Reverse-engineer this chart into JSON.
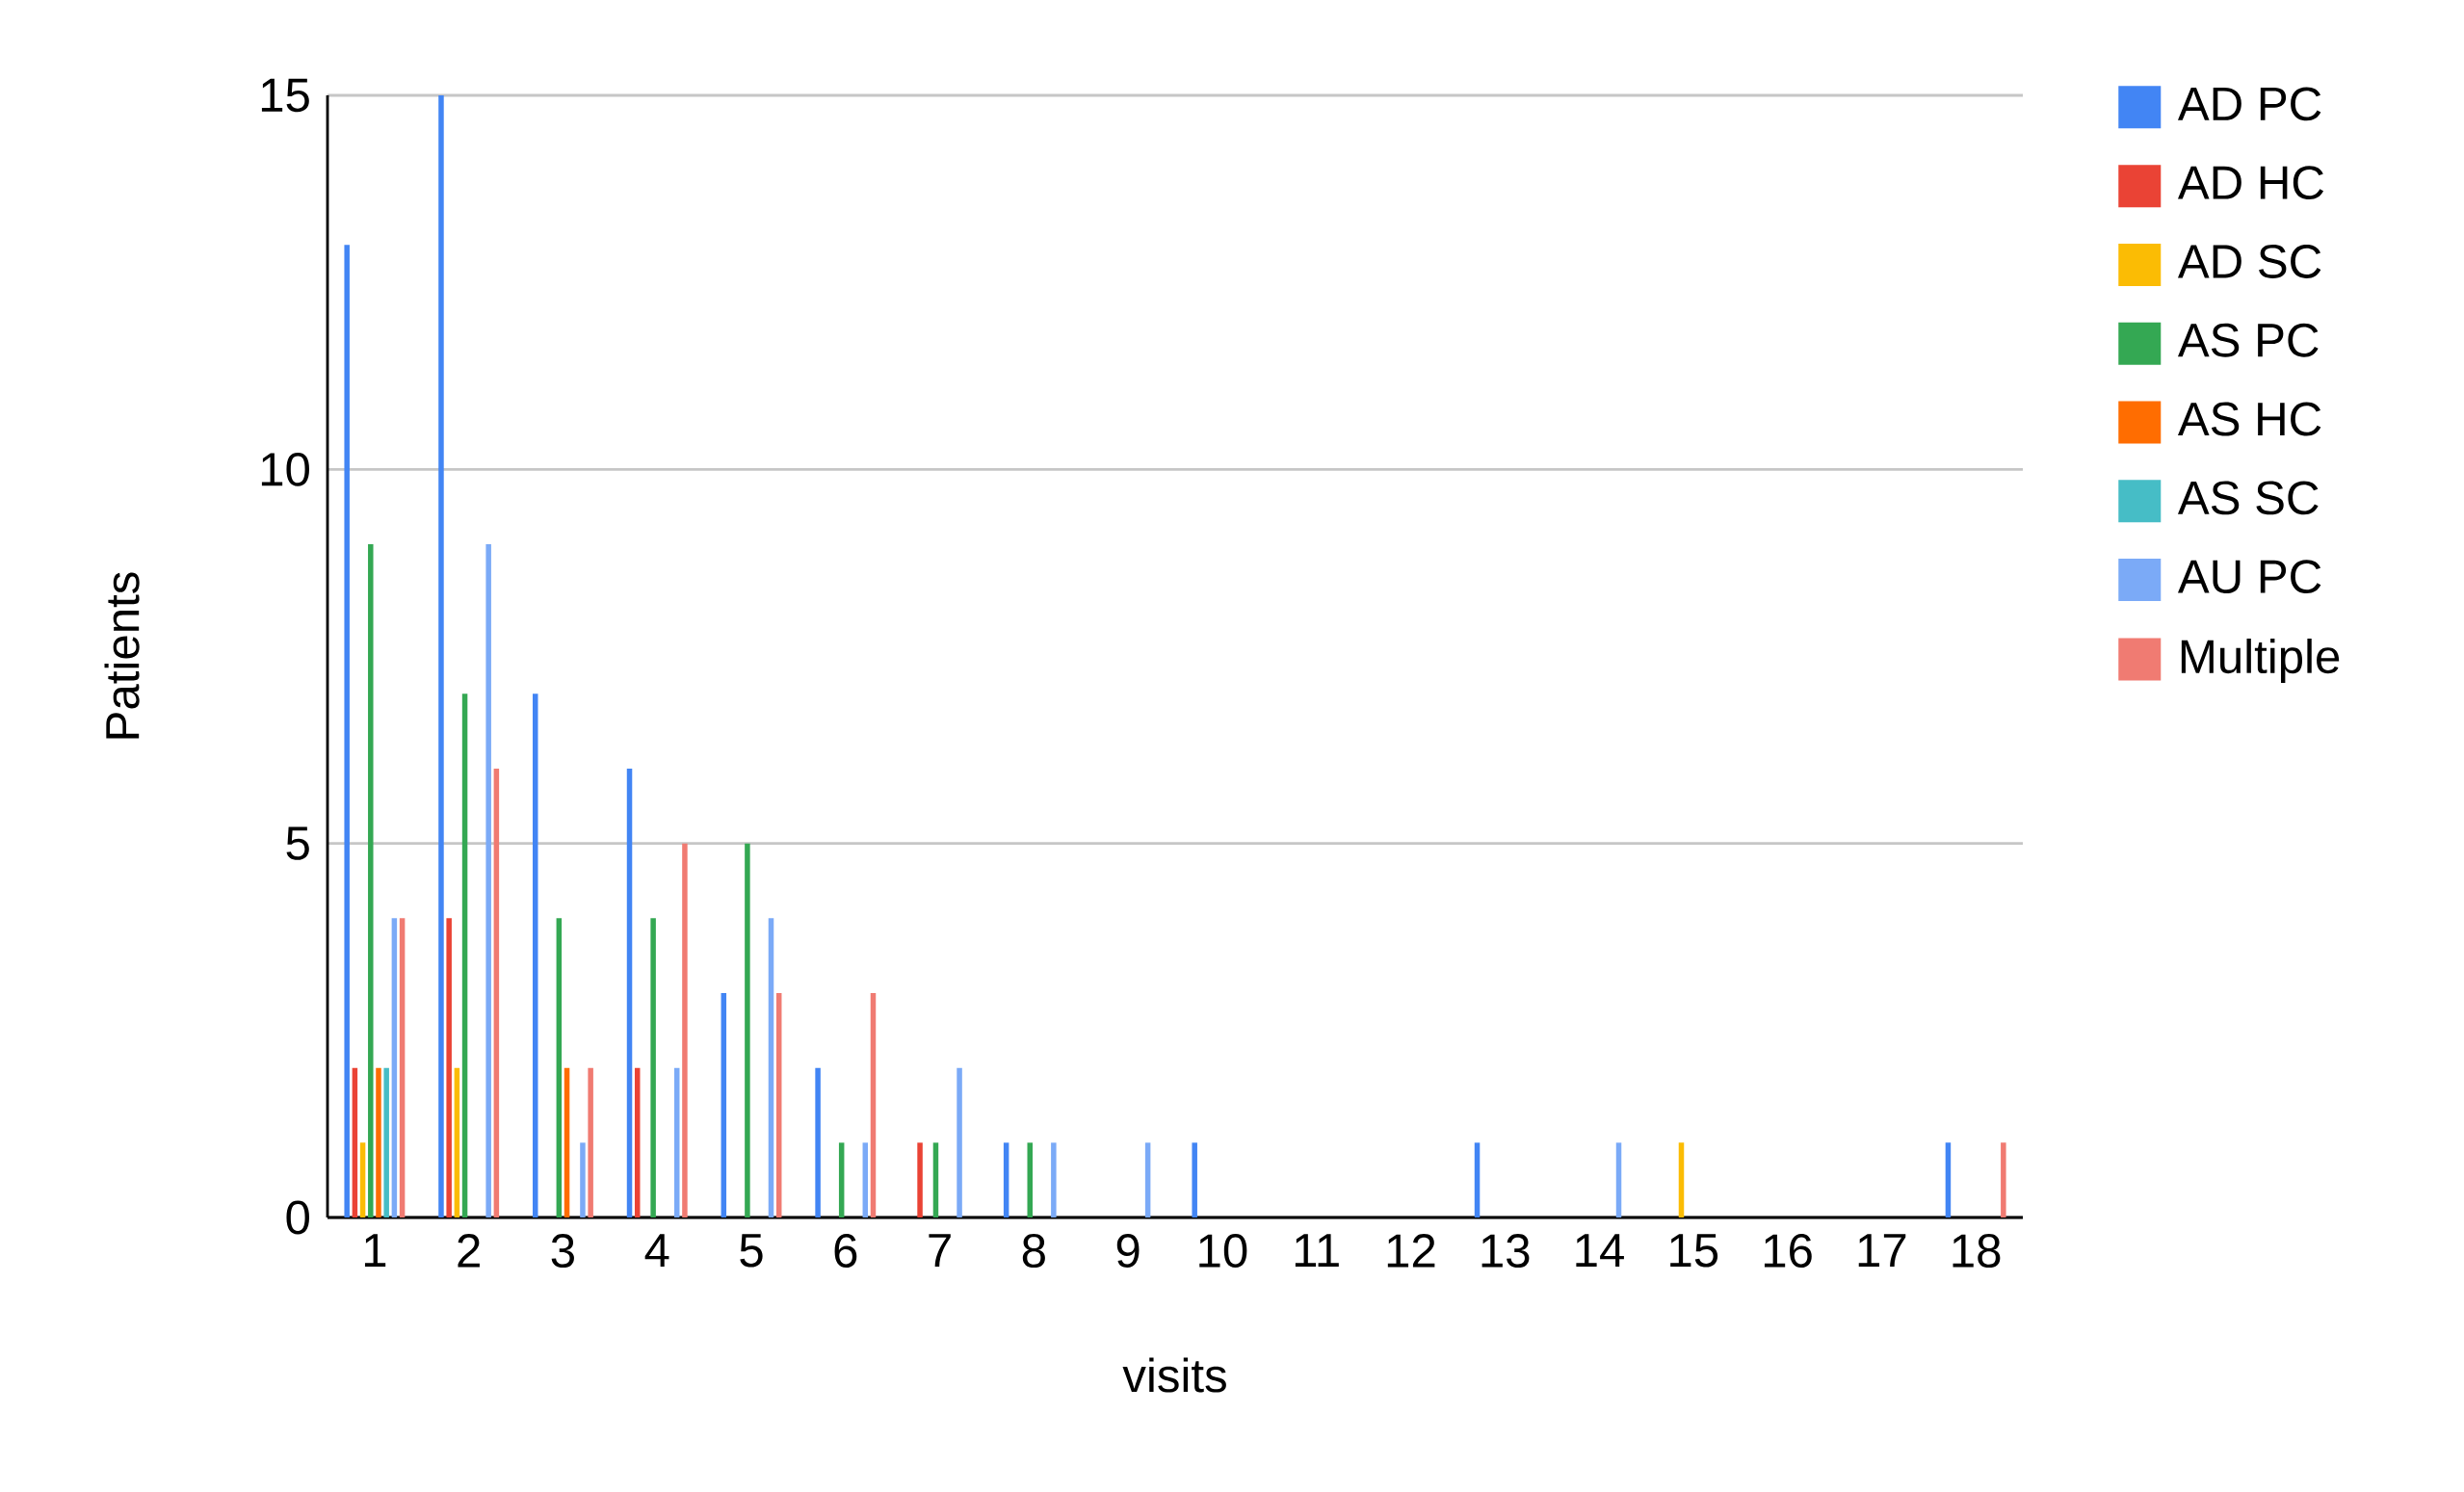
{
  "chart_data": {
    "type": "bar",
    "xlabel": "visits",
    "ylabel": "Patients",
    "categories": [
      "1",
      "2",
      "3",
      "4",
      "5",
      "6",
      "7",
      "8",
      "9",
      "10",
      "11",
      "12",
      "13",
      "14",
      "15",
      "16",
      "17",
      "18"
    ],
    "series": [
      {
        "name": "AD PC",
        "color": "#4285f4",
        "values": [
          13,
          15,
          7,
          6,
          3,
          2,
          0,
          1,
          0,
          1,
          0,
          0,
          1,
          0,
          0,
          0,
          0,
          1
        ]
      },
      {
        "name": "AD HC",
        "color": "#ea4335",
        "values": [
          2,
          4,
          0,
          2,
          0,
          0,
          1,
          0,
          0,
          0,
          0,
          0,
          0,
          0,
          0,
          0,
          0,
          0
        ]
      },
      {
        "name": "AD SC",
        "color": "#fbbc04",
        "values": [
          1,
          2,
          0,
          0,
          0,
          0,
          0,
          0,
          0,
          0,
          0,
          0,
          0,
          0,
          1,
          0,
          0,
          0
        ]
      },
      {
        "name": "AS PC",
        "color": "#34a853",
        "values": [
          9,
          7,
          4,
          4,
          5,
          1,
          1,
          1,
          0,
          0,
          0,
          0,
          0,
          0,
          0,
          0,
          0,
          0
        ]
      },
      {
        "name": "AS HC",
        "color": "#ff6d01",
        "values": [
          2,
          0,
          2,
          0,
          0,
          0,
          0,
          0,
          0,
          0,
          0,
          0,
          0,
          0,
          0,
          0,
          0,
          0
        ]
      },
      {
        "name": "AS SC",
        "color": "#46bdc6",
        "values": [
          2,
          0,
          0,
          0,
          0,
          0,
          0,
          0,
          0,
          0,
          0,
          0,
          0,
          0,
          0,
          0,
          0,
          0
        ]
      },
      {
        "name": "AU PC",
        "color": "#7baaf7",
        "values": [
          4,
          9,
          1,
          2,
          4,
          1,
          2,
          1,
          1,
          0,
          0,
          0,
          0,
          1,
          0,
          0,
          0,
          0
        ]
      },
      {
        "name": "Multiple",
        "color": "#f07b72",
        "values": [
          4,
          6,
          2,
          5,
          3,
          3,
          0,
          0,
          0,
          0,
          0,
          0,
          0,
          0,
          0,
          0,
          0,
          1
        ]
      }
    ],
    "ylim": [
      0,
      15
    ],
    "yticks": [
      0,
      5,
      10,
      15
    ],
    "grid": "y",
    "legend": "top right"
  }
}
